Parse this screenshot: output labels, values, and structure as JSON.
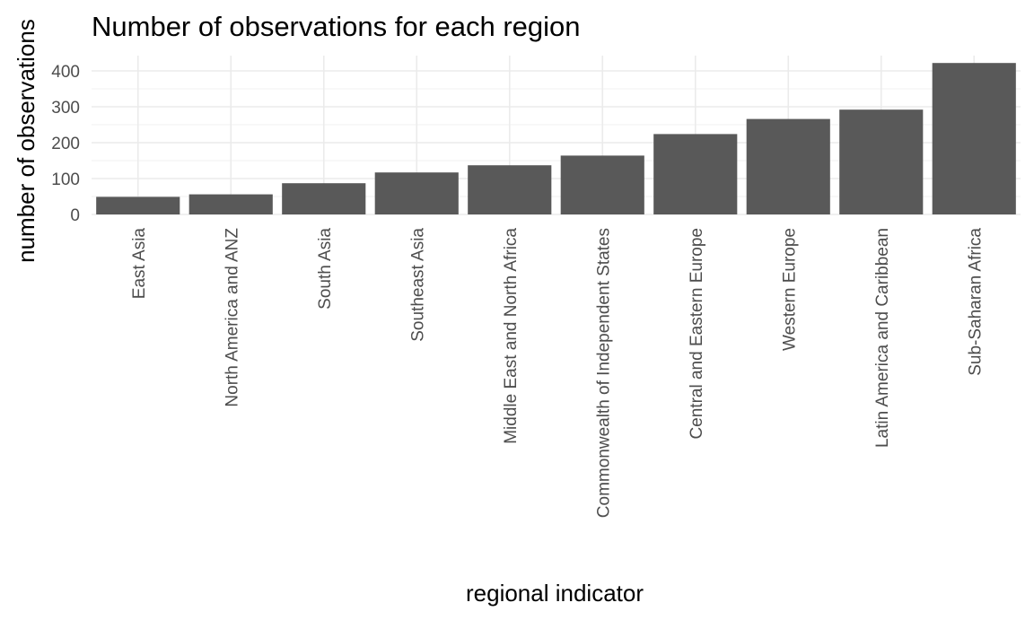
{
  "chart_data": {
    "type": "bar",
    "title": "Number of observations for each region",
    "xlabel": "regional indicator",
    "ylabel": "number of observations",
    "categories": [
      "East Asia",
      "North America and ANZ",
      "South Asia",
      "Southeast Asia",
      "Middle East and North Africa",
      "Commonwealth of Independent States",
      "Central and Eastern Europe",
      "Western Europe",
      "Latin America and Caribbean",
      "Sub-Saharan Africa"
    ],
    "values": [
      49,
      56,
      87,
      117,
      137,
      164,
      224,
      266,
      292,
      422
    ],
    "ylim": [
      0,
      440
    ],
    "yticks": [
      0,
      100,
      200,
      300,
      400
    ],
    "bar_color": "#595959",
    "grid": true,
    "theme": "minimal"
  }
}
